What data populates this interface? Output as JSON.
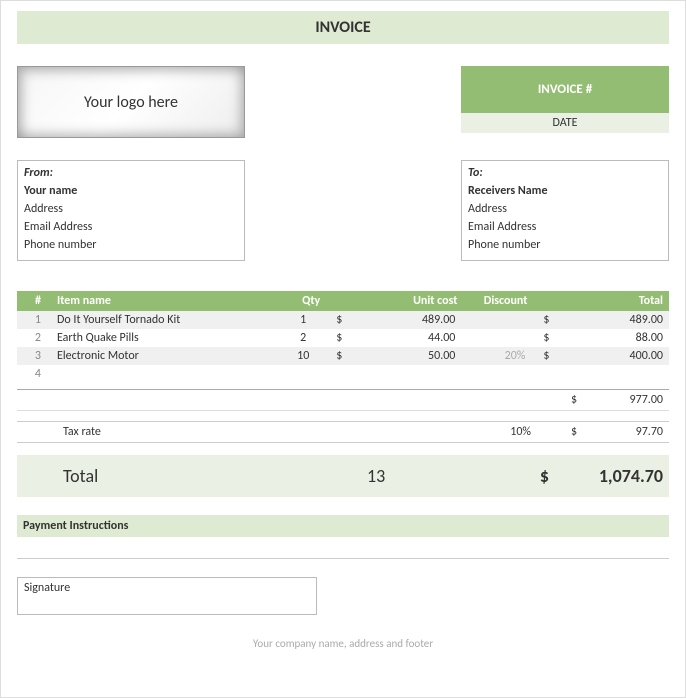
{
  "colors": {
    "header_bg": "#dfead2",
    "accent_bg": "#94bd74",
    "accent_text": "#ffffff",
    "light_bg": "#eaf0e3",
    "row_alt": "#f0f0f0",
    "muted": "#aaaaaa",
    "border": "#bbbbbb"
  },
  "header": {
    "title": "INVOICE"
  },
  "logo": {
    "placeholder": "Your logo here"
  },
  "invoice_info": {
    "invoice_number_label": "INVOICE #",
    "date_label": "DATE"
  },
  "from": {
    "label": "From:",
    "name": "Your name",
    "address": "Address",
    "email": "Email Address",
    "phone": "Phone number"
  },
  "to": {
    "label": "To:",
    "name": "Receivers Name",
    "address": "Address",
    "email": "Email Address",
    "phone": "Phone number"
  },
  "table": {
    "headers": {
      "num": "#",
      "item": "Item name",
      "qty": "Qty",
      "unit": "Unit cost",
      "discount": "Discount",
      "total": "Total"
    },
    "currency": "$",
    "rows": [
      {
        "n": "1",
        "item": "Do It Yourself Tornado Kit",
        "qty": "1",
        "unit": "489.00",
        "discount": "",
        "total": "489.00"
      },
      {
        "n": "2",
        "item": "Earth Quake Pills",
        "qty": "2",
        "unit": "44.00",
        "discount": "",
        "total": "88.00"
      },
      {
        "n": "3",
        "item": "Electronic Motor",
        "qty": "10",
        "unit": "50.00",
        "discount": "20%",
        "total": "400.00"
      },
      {
        "n": "4",
        "item": "",
        "qty": "",
        "unit": "",
        "discount": "",
        "total": ""
      }
    ]
  },
  "summary": {
    "subtotal": "977.00",
    "tax_label": "Tax rate",
    "tax_rate": "10%",
    "tax_amount": "97.70",
    "total_label": "Total",
    "total_qty": "13",
    "total_amount": "1,074.70",
    "currency": "$"
  },
  "payment": {
    "label": "Payment Instructions"
  },
  "signature": {
    "label": "Signature"
  },
  "footer": {
    "text": "Your company name, address and footer"
  }
}
